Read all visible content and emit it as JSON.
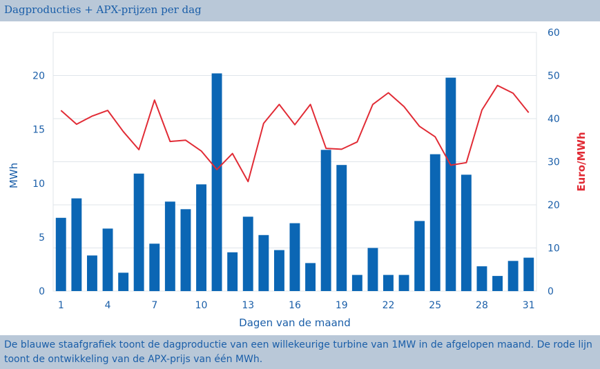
{
  "title": "Dagproducties + APX-prijzen per dag",
  "caption": "De blauwe staafgrafiek toont de dagproductie van een willekeurige turbine van 1MW in de afgelopen maand. De rode lijn toont de ontwikkeling van de APX-prijs van één MWh.",
  "colors": {
    "bar": "#0b66b4",
    "line": "#e12b35",
    "axis_left": "#1a5ea8",
    "axis_right": "#e12b35",
    "grid": "#dfe4ea"
  },
  "chart_data": {
    "type": "bar",
    "xlabel": "Dagen van de maand",
    "ylabel_left": "MWh",
    "ylabel_right": "Euro/MWh",
    "x": [
      1,
      2,
      3,
      4,
      5,
      6,
      7,
      8,
      9,
      10,
      11,
      12,
      13,
      14,
      15,
      16,
      17,
      18,
      19,
      20,
      21,
      22,
      23,
      24,
      25,
      26,
      27,
      28,
      29,
      30,
      31
    ],
    "x_tick_labels": [
      "1",
      "4",
      "7",
      "10",
      "13",
      "16",
      "19",
      "22",
      "25",
      "28",
      "31"
    ],
    "x_tick_values": [
      1,
      4,
      7,
      10,
      13,
      16,
      19,
      22,
      25,
      28,
      31
    ],
    "ylim_left": [
      0,
      24
    ],
    "y_ticks_left": [
      0,
      5,
      10,
      15,
      20
    ],
    "ylim_right": [
      0,
      60
    ],
    "y_ticks_right": [
      0,
      10,
      20,
      30,
      40,
      50,
      60
    ],
    "grid": true,
    "series": [
      {
        "type": "bar",
        "axis": "left",
        "values": [
          6.8,
          8.6,
          3.3,
          5.8,
          1.7,
          10.9,
          4.4,
          8.3,
          7.6,
          9.9,
          20.2,
          3.6,
          6.9,
          5.2,
          3.8,
          6.3,
          2.6,
          13.1,
          11.7,
          1.5,
          4.0,
          1.5,
          1.5,
          6.5,
          12.7,
          19.8,
          10.8,
          2.3,
          1.4,
          2.8,
          3.1
        ]
      },
      {
        "type": "line",
        "axis": "right",
        "values": [
          41.9,
          38.7,
          40.6,
          41.9,
          37.0,
          32.8,
          44.3,
          34.7,
          35.0,
          32.5,
          28.2,
          31.9,
          25.4,
          38.9,
          43.3,
          38.6,
          43.3,
          33.1,
          32.9,
          34.6,
          43.3,
          46.0,
          42.8,
          38.2,
          35.8,
          29.2,
          29.8,
          42.0,
          47.7,
          45.9,
          41.4
        ]
      }
    ]
  }
}
